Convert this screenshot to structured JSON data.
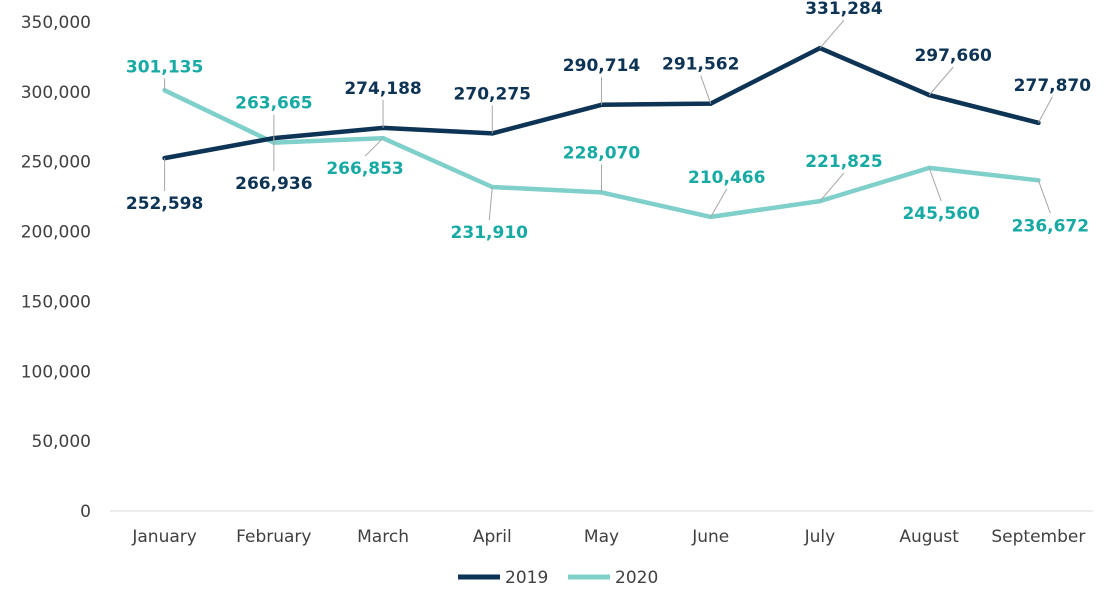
{
  "chart_data": {
    "type": "line",
    "title": "",
    "xlabel": "",
    "ylabel": "",
    "categories": [
      "January",
      "February",
      "March",
      "April",
      "May",
      "June",
      "July",
      "August",
      "September"
    ],
    "ylim": [
      0,
      350000
    ],
    "yticks": [
      0,
      50000,
      100000,
      150000,
      200000,
      250000,
      300000,
      350000
    ],
    "ytick_labels": [
      "0",
      "50,000",
      "100,000",
      "150,000",
      "200,000",
      "250,000",
      "300,000",
      "350,000"
    ],
    "grid": false,
    "legend": "bottom",
    "series": [
      {
        "name": "2019",
        "color": "#0d3355",
        "values": [
          252598,
          266936,
          274188,
          270275,
          290714,
          291562,
          331284,
          297660,
          277870
        ],
        "labels": [
          "252,598",
          "266,936",
          "274,188",
          "270,275",
          "290,714",
          "291,562",
          "331,284",
          "297,660",
          "277,870"
        ]
      },
      {
        "name": "2020",
        "color": "#7fcfca",
        "label_color": "#17aaa4",
        "values": [
          301135,
          263665,
          266853,
          231910,
          228070,
          210466,
          221825,
          245560,
          236672
        ],
        "labels": [
          "301,135",
          "263,665",
          "266,853",
          "231,910",
          "228,070",
          "210,466",
          "221,825",
          "245,560",
          "236,672"
        ]
      }
    ]
  }
}
